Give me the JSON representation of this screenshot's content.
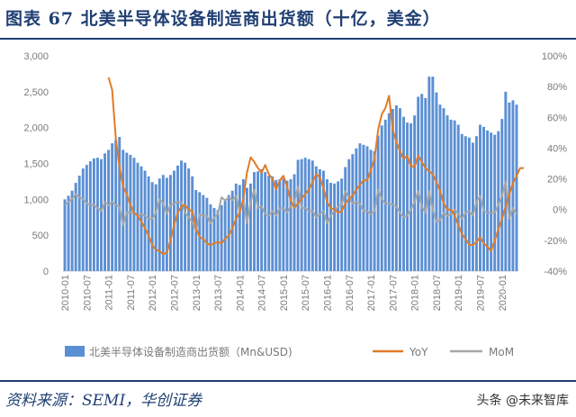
{
  "header": {
    "title": "图表 67  北美半导体设备制造商出货额（十亿，美金）"
  },
  "source": "资料来源：SEMI，华创证券",
  "watermark": "头条 @未来智库",
  "colors": {
    "bar": "#5b8fd4",
    "yoy": "#e07b28",
    "mom": "#a6a6a6",
    "title": "#1f3f73"
  },
  "chart_data": {
    "type": "bar",
    "y_left_ticks": [
      "0",
      "500",
      "1,000",
      "1,500",
      "2,000",
      "2,500",
      "3,000"
    ],
    "y_right_ticks": [
      "-40%",
      "-20%",
      "0%",
      "20%",
      "40%",
      "60%",
      "80%",
      "100%"
    ],
    "x_ticks": [
      "2010-01",
      "2010-07",
      "2011-01",
      "2011-07",
      "2012-01",
      "2012-07",
      "2013-01",
      "2013-07",
      "2014-01",
      "2014-07",
      "2015-01",
      "2015-07",
      "2016-01",
      "2016-07",
      "2017-01",
      "2017-07",
      "2018-01",
      "2018-07",
      "2019-01",
      "2019-07",
      "2020-01"
    ],
    "ylim_left": [
      0,
      3000
    ],
    "ylim_right": [
      -0.4,
      1.0
    ],
    "series": [
      {
        "name": "北美半导体设备制造商出货额（Mn&USD)",
        "axis": "left",
        "kind": "bar",
        "values": [
          1000,
          1050,
          1120,
          1230,
          1330,
          1430,
          1480,
          1530,
          1570,
          1580,
          1560,
          1640,
          1690,
          1780,
          1830,
          1870,
          1690,
          1650,
          1620,
          1580,
          1510,
          1460,
          1400,
          1320,
          1240,
          1210,
          1290,
          1340,
          1300,
          1340,
          1400,
          1470,
          1540,
          1510,
          1430,
          1320,
          1130,
          1100,
          1060,
          1020,
          930,
          880,
          850,
          920,
          980,
          1060,
          1120,
          1220,
          1200,
          1280,
          1160,
          1220,
          1380,
          1390,
          1420,
          1380,
          1330,
          1320,
          1270,
          1280,
          1290,
          1260,
          1280,
          1350,
          1550,
          1560,
          1580,
          1560,
          1540,
          1460,
          1420,
          1400,
          1280,
          1230,
          1220,
          1250,
          1290,
          1450,
          1560,
          1630,
          1710,
          1780,
          1760,
          1740,
          1690,
          1670,
          1890,
          2030,
          2110,
          2200,
          2260,
          2310,
          2270,
          2150,
          2070,
          2060,
          2170,
          2430,
          2470,
          2410,
          2710,
          2710,
          2490,
          2320,
          2270,
          2170,
          2110,
          2100,
          2040,
          1910,
          1880,
          1860,
          1790,
          1880,
          2040,
          2010,
          1960,
          1930,
          1900,
          1950,
          2120,
          2500,
          2350,
          2380,
          2320
        ]
      },
      {
        "name": "YoY",
        "axis": "right",
        "kind": "line",
        "values": [
          null,
          null,
          null,
          null,
          null,
          null,
          null,
          null,
          null,
          null,
          null,
          null,
          0.86,
          0.78,
          0.46,
          0.28,
          0.15,
          0.1,
          0.03,
          -0.02,
          -0.04,
          -0.08,
          -0.12,
          -0.17,
          -0.23,
          -0.26,
          -0.27,
          -0.29,
          -0.28,
          -0.2,
          -0.1,
          -0.02,
          0.02,
          0.03,
          0.0,
          -0.01,
          -0.12,
          -0.18,
          -0.19,
          -0.22,
          -0.23,
          -0.22,
          -0.21,
          -0.22,
          -0.19,
          -0.17,
          -0.12,
          -0.06,
          -0.02,
          0.07,
          0.24,
          0.34,
          0.31,
          0.27,
          0.24,
          0.29,
          0.23,
          0.2,
          0.13,
          0.19,
          0.22,
          0.15,
          0.06,
          0.01,
          0.04,
          0.07,
          0.1,
          0.13,
          0.18,
          0.23,
          0.21,
          0.14,
          0.05,
          0.01,
          0.0,
          -0.02,
          -0.01,
          0.04,
          0.07,
          0.09,
          0.13,
          0.16,
          0.19,
          0.19,
          0.26,
          0.33,
          0.52,
          0.62,
          0.66,
          0.74,
          0.52,
          0.44,
          0.38,
          0.33,
          0.35,
          0.28,
          0.28,
          0.35,
          0.31,
          0.27,
          0.25,
          0.23,
          0.18,
          0.12,
          0.04,
          0.0,
          0.0,
          -0.04,
          -0.1,
          -0.16,
          -0.19,
          -0.23,
          -0.23,
          -0.21,
          -0.18,
          -0.22,
          -0.24,
          -0.27,
          -0.2,
          -0.13,
          -0.06,
          0.02,
          0.1,
          0.17,
          0.22,
          0.27,
          0.27
        ]
      },
      {
        "name": "MoM",
        "axis": "right",
        "kind": "line",
        "values": [
          0.03,
          0.05,
          0.07,
          0.1,
          0.08,
          0.07,
          0.04,
          0.03,
          0.03,
          0.01,
          -0.01,
          0.05,
          0.03,
          0.05,
          0.03,
          0.02,
          -0.1,
          -0.02,
          -0.02,
          -0.02,
          -0.04,
          -0.03,
          -0.04,
          -0.06,
          -0.06,
          -0.02,
          0.07,
          0.04,
          -0.03,
          0.03,
          0.04,
          0.05,
          0.05,
          -0.02,
          -0.05,
          -0.08,
          -0.14,
          -0.03,
          -0.04,
          -0.04,
          -0.09,
          -0.05,
          -0.03,
          0.08,
          0.06,
          0.08,
          0.06,
          0.09,
          -0.02,
          0.07,
          -0.09,
          0.05,
          0.13,
          0.01,
          0.02,
          -0.03,
          -0.04,
          -0.01,
          -0.04,
          0.01,
          0.01,
          -0.02,
          0.02,
          0.05,
          0.15,
          0.01,
          0.01,
          -0.01,
          -0.01,
          -0.05,
          -0.03,
          -0.01,
          -0.09,
          -0.04,
          -0.01,
          0.02,
          0.03,
          0.12,
          0.08,
          0.04,
          0.05,
          0.04,
          -0.01,
          -0.01,
          -0.03,
          -0.01,
          0.13,
          0.07,
          0.04,
          0.04,
          0.03,
          0.02,
          -0.02,
          -0.05,
          -0.04,
          0.0,
          0.05,
          0.12,
          0.02,
          -0.02,
          0.12,
          0.0,
          -0.08,
          -0.07,
          -0.02,
          -0.04,
          -0.03,
          0.0,
          -0.03,
          -0.06,
          -0.02,
          -0.01,
          -0.04,
          0.05,
          0.09,
          -0.01,
          -0.02,
          -0.02,
          -0.02,
          0.03,
          0.09,
          0.18,
          -0.06,
          0.01,
          -0.03
        ]
      }
    ]
  }
}
